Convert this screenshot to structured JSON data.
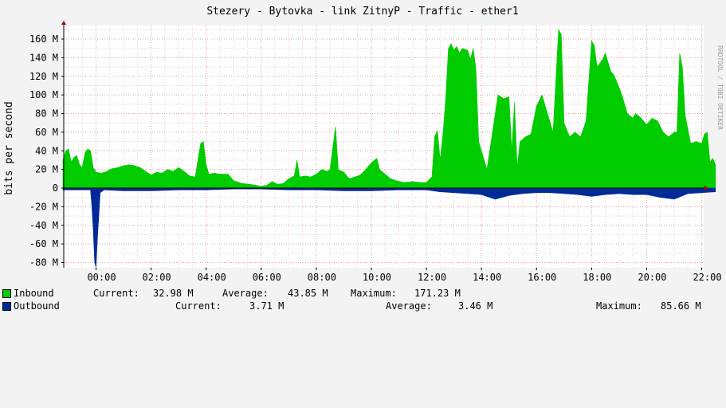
{
  "chart_data": {
    "type": "area",
    "title": "Stezery - Bytovka - link ZitnyP - Traffic - ether1",
    "ylabel": "bits per second",
    "watermark": "RRDTOOL / TOBI OETIKER",
    "x_ticks": [
      "00:00",
      "02:00",
      "04:00",
      "06:00",
      "08:00",
      "10:00",
      "12:00",
      "14:00",
      "16:00",
      "18:00",
      "20:00",
      "22:00"
    ],
    "y_ticks": [
      "160 M",
      "140 M",
      "120 M",
      "100 M",
      "80 M",
      "60 M",
      "40 M",
      "20 M",
      "0",
      "-20 M",
      "-40 M",
      "-60 M",
      "-80 M"
    ],
    "ylim": [
      -85,
      172
    ],
    "x_range_hours": [
      -1.27,
      22.5
    ],
    "series": [
      {
        "name": "Inbound",
        "color": "#00cc00",
        "points": [
          [
            -1.2,
            30
          ],
          [
            -1.1,
            40
          ],
          [
            -1.0,
            42
          ],
          [
            -0.9,
            28
          ],
          [
            -0.8,
            33
          ],
          [
            -0.7,
            35
          ],
          [
            -0.6,
            25
          ],
          [
            -0.5,
            22
          ],
          [
            -0.4,
            38
          ],
          [
            -0.3,
            42
          ],
          [
            -0.2,
            40
          ],
          [
            -0.1,
            22
          ],
          [
            0.0,
            17
          ],
          [
            0.2,
            16
          ],
          [
            0.4,
            18
          ],
          [
            0.5,
            20
          ],
          [
            0.6,
            21
          ],
          [
            0.8,
            22
          ],
          [
            1.0,
            24
          ],
          [
            1.2,
            25
          ],
          [
            1.4,
            24
          ],
          [
            1.6,
            22
          ],
          [
            1.8,
            18
          ],
          [
            2.0,
            14
          ],
          [
            2.2,
            17
          ],
          [
            2.4,
            16
          ],
          [
            2.6,
            20
          ],
          [
            2.8,
            18
          ],
          [
            3.0,
            22
          ],
          [
            3.2,
            18
          ],
          [
            3.4,
            13
          ],
          [
            3.6,
            12
          ],
          [
            3.8,
            48
          ],
          [
            3.9,
            50
          ],
          [
            4.0,
            25
          ],
          [
            4.1,
            15
          ],
          [
            4.3,
            16
          ],
          [
            4.5,
            15
          ],
          [
            4.8,
            15
          ],
          [
            5.0,
            8
          ],
          [
            5.3,
            5
          ],
          [
            5.6,
            4
          ],
          [
            5.8,
            3
          ],
          [
            6.0,
            2
          ],
          [
            6.2,
            3
          ],
          [
            6.4,
            7
          ],
          [
            6.6,
            4
          ],
          [
            6.8,
            5
          ],
          [
            7.0,
            10
          ],
          [
            7.2,
            13
          ],
          [
            7.3,
            30
          ],
          [
            7.4,
            12
          ],
          [
            7.6,
            13
          ],
          [
            7.8,
            12
          ],
          [
            8.0,
            15
          ],
          [
            8.2,
            20
          ],
          [
            8.4,
            18
          ],
          [
            8.5,
            20
          ],
          [
            8.7,
            66
          ],
          [
            8.8,
            20
          ],
          [
            9.0,
            17
          ],
          [
            9.2,
            10
          ],
          [
            9.4,
            12
          ],
          [
            9.6,
            14
          ],
          [
            9.8,
            20
          ],
          [
            10.0,
            27
          ],
          [
            10.2,
            32
          ],
          [
            10.3,
            20
          ],
          [
            10.5,
            15
          ],
          [
            10.7,
            10
          ],
          [
            10.9,
            8
          ],
          [
            11.2,
            6
          ],
          [
            11.5,
            7
          ],
          [
            11.8,
            6
          ],
          [
            12.0,
            6
          ],
          [
            12.2,
            12
          ],
          [
            12.3,
            55
          ],
          [
            12.4,
            62
          ],
          [
            12.5,
            30
          ],
          [
            12.6,
            58
          ],
          [
            12.7,
            95
          ],
          [
            12.8,
            150
          ],
          [
            12.9,
            155
          ],
          [
            13.0,
            148
          ],
          [
            13.1,
            152
          ],
          [
            13.2,
            145
          ],
          [
            13.3,
            150
          ],
          [
            13.5,
            148
          ],
          [
            13.6,
            138
          ],
          [
            13.7,
            150
          ],
          [
            13.8,
            128
          ],
          [
            13.9,
            50
          ],
          [
            14.0,
            40
          ],
          [
            14.2,
            20
          ],
          [
            14.4,
            60
          ],
          [
            14.6,
            100
          ],
          [
            14.8,
            96
          ],
          [
            15.0,
            98
          ],
          [
            15.1,
            40
          ],
          [
            15.2,
            92
          ],
          [
            15.3,
            22
          ],
          [
            15.4,
            50
          ],
          [
            15.6,
            55
          ],
          [
            15.8,
            58
          ],
          [
            16.0,
            88
          ],
          [
            16.2,
            100
          ],
          [
            16.4,
            80
          ],
          [
            16.6,
            60
          ],
          [
            16.8,
            170
          ],
          [
            16.9,
            165
          ],
          [
            17.0,
            70
          ],
          [
            17.2,
            55
          ],
          [
            17.4,
            60
          ],
          [
            17.6,
            55
          ],
          [
            17.8,
            72
          ],
          [
            18.0,
            158
          ],
          [
            18.1,
            153
          ],
          [
            18.2,
            130
          ],
          [
            18.4,
            138
          ],
          [
            18.5,
            145
          ],
          [
            18.7,
            125
          ],
          [
            18.8,
            122
          ],
          [
            19.0,
            108
          ],
          [
            19.1,
            100
          ],
          [
            19.3,
            80
          ],
          [
            19.5,
            75
          ],
          [
            19.6,
            80
          ],
          [
            19.8,
            75
          ],
          [
            20.0,
            68
          ],
          [
            20.2,
            75
          ],
          [
            20.4,
            72
          ],
          [
            20.6,
            60
          ],
          [
            20.8,
            55
          ],
          [
            21.0,
            60
          ],
          [
            21.1,
            60
          ],
          [
            21.2,
            145
          ],
          [
            21.3,
            130
          ],
          [
            21.4,
            78
          ],
          [
            21.6,
            48
          ],
          [
            21.8,
            50
          ],
          [
            22.0,
            48
          ],
          [
            22.1,
            58
          ],
          [
            22.2,
            60
          ],
          [
            22.3,
            28
          ],
          [
            22.4,
            32
          ],
          [
            22.5,
            25
          ]
        ]
      },
      {
        "name": "Outbound",
        "color": "#002a97",
        "points": [
          [
            -1.2,
            -2
          ],
          [
            -0.9,
            -2
          ],
          [
            -0.5,
            -2
          ],
          [
            -0.2,
            -2
          ],
          [
            -0.15,
            -20
          ],
          [
            -0.1,
            -45
          ],
          [
            -0.05,
            -80
          ],
          [
            0.0,
            -85
          ],
          [
            0.05,
            -55
          ],
          [
            0.1,
            -30
          ],
          [
            0.15,
            -5
          ],
          [
            0.3,
            -2
          ],
          [
            1.0,
            -3
          ],
          [
            2.0,
            -3
          ],
          [
            3.0,
            -2
          ],
          [
            4.0,
            -2
          ],
          [
            5.0,
            -1
          ],
          [
            6.0,
            -1
          ],
          [
            7.0,
            -2
          ],
          [
            8.0,
            -2
          ],
          [
            9.0,
            -3
          ],
          [
            10.0,
            -3
          ],
          [
            11.0,
            -2
          ],
          [
            12.0,
            -2
          ],
          [
            12.5,
            -4
          ],
          [
            13.0,
            -5
          ],
          [
            13.5,
            -6
          ],
          [
            14.0,
            -7
          ],
          [
            14.5,
            -12
          ],
          [
            15.0,
            -8
          ],
          [
            15.5,
            -6
          ],
          [
            16.0,
            -5
          ],
          [
            16.5,
            -5
          ],
          [
            17.0,
            -6
          ],
          [
            17.5,
            -7
          ],
          [
            18.0,
            -9
          ],
          [
            18.5,
            -7
          ],
          [
            19.0,
            -6
          ],
          [
            19.5,
            -7
          ],
          [
            20.0,
            -7
          ],
          [
            20.5,
            -10
          ],
          [
            21.0,
            -12
          ],
          [
            21.5,
            -6
          ],
          [
            22.0,
            -5
          ],
          [
            22.5,
            -4
          ]
        ]
      }
    ]
  },
  "legend": {
    "inbound": {
      "name": "Inbound",
      "color": "#00cc00",
      "current_label": "Current:",
      "current": "32.98 M",
      "average_label": "Average:",
      "average": "43.85 M",
      "maximum_label": "Maximum:",
      "maximum": "171.23 M"
    },
    "outbound": {
      "name": "Outbound",
      "color": "#002a97",
      "current_label": "Current:",
      "current": "3.71 M",
      "average_label": "Average:",
      "average": "3.46 M",
      "maximum_label": "Maximum:",
      "maximum": "85.66 M"
    }
  }
}
